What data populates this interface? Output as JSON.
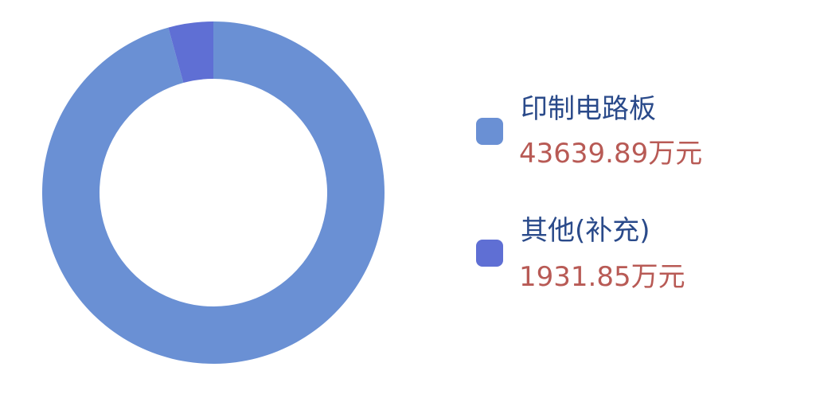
{
  "chart_data": {
    "type": "pie",
    "variant": "donut",
    "unit": "万元",
    "series": [
      {
        "name": "印制电路板",
        "value": 43639.89,
        "value_label": "43639.89万元",
        "color": "#6a90d4"
      },
      {
        "name": "其他(补充)",
        "value": 1931.85,
        "value_label": "1931.85万元",
        "color": "#5f6fd4"
      }
    ],
    "legend": "right",
    "start_angle": "top, clockwise"
  }
}
